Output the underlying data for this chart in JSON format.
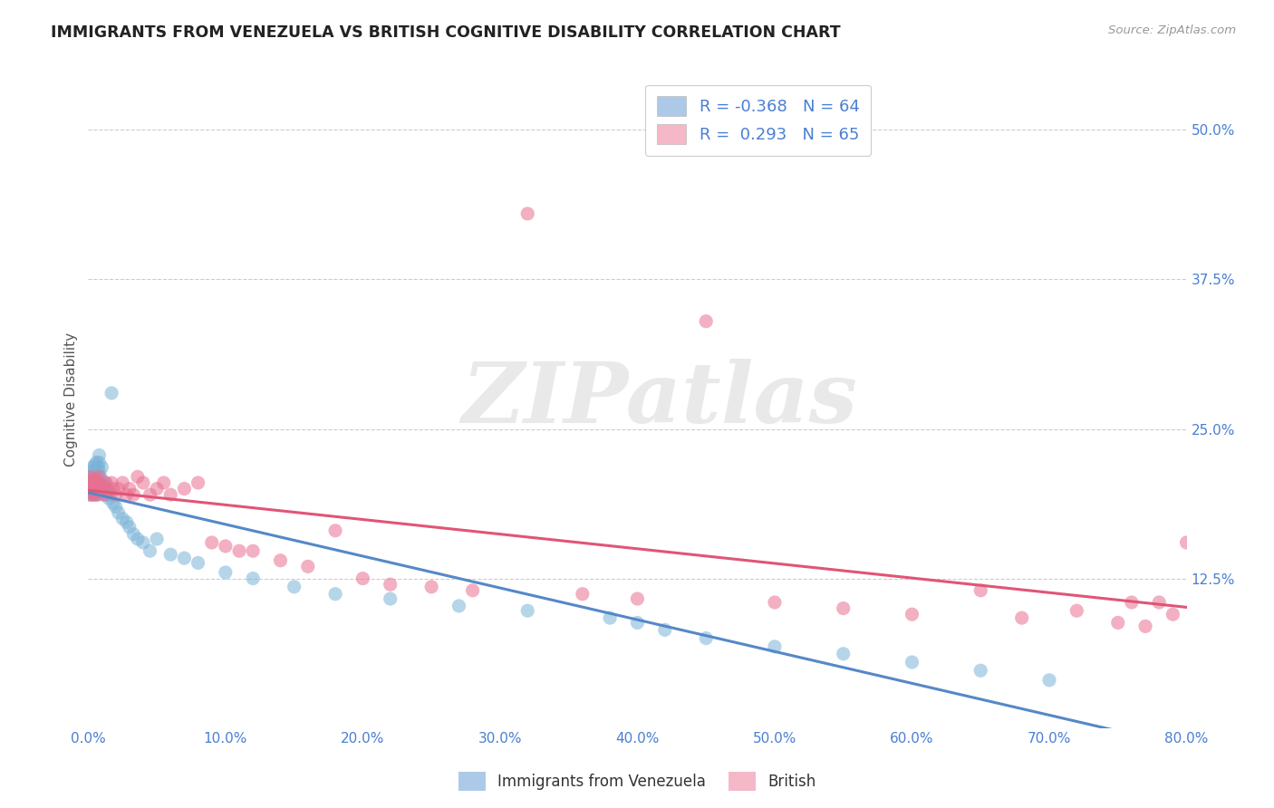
{
  "title": "IMMIGRANTS FROM VENEZUELA VS BRITISH COGNITIVE DISABILITY CORRELATION CHART",
  "source": "Source: ZipAtlas.com",
  "ylabel": "Cognitive Disability",
  "watermark": "ZIPatlas",
  "legend_R_N": [
    {
      "R": -0.368,
      "N": 64,
      "patch_color": "#adc9e8"
    },
    {
      "R": 0.293,
      "N": 65,
      "patch_color": "#f4b8c8"
    }
  ],
  "bottom_legend": [
    {
      "label": "Immigrants from Venezuela",
      "color": "#adc9e8"
    },
    {
      "label": "British",
      "color": "#f4b8c8"
    }
  ],
  "series": [
    {
      "name": "Immigrants from Venezuela",
      "dot_color": "#7ab3d8",
      "trend_color": "#5588c8",
      "trend_style": "-",
      "x": [
        0.001,
        0.001,
        0.002,
        0.002,
        0.002,
        0.003,
        0.003,
        0.003,
        0.004,
        0.004,
        0.004,
        0.005,
        0.005,
        0.005,
        0.006,
        0.006,
        0.006,
        0.007,
        0.007,
        0.007,
        0.008,
        0.008,
        0.008,
        0.009,
        0.009,
        0.01,
        0.01,
        0.011,
        0.012,
        0.013,
        0.014,
        0.015,
        0.016,
        0.017,
        0.018,
        0.02,
        0.022,
        0.025,
        0.028,
        0.03,
        0.033,
        0.036,
        0.04,
        0.045,
        0.05,
        0.06,
        0.07,
        0.08,
        0.1,
        0.12,
        0.15,
        0.18,
        0.22,
        0.27,
        0.32,
        0.38,
        0.4,
        0.42,
        0.45,
        0.5,
        0.55,
        0.6,
        0.65,
        0.7
      ],
      "y": [
        0.2,
        0.21,
        0.195,
        0.205,
        0.215,
        0.2,
        0.208,
        0.218,
        0.195,
        0.205,
        0.215,
        0.2,
        0.21,
        0.22,
        0.195,
        0.208,
        0.222,
        0.2,
        0.212,
        0.218,
        0.215,
        0.222,
        0.228,
        0.2,
        0.21,
        0.2,
        0.218,
        0.195,
        0.205,
        0.202,
        0.195,
        0.192,
        0.195,
        0.28,
        0.188,
        0.185,
        0.18,
        0.175,
        0.172,
        0.168,
        0.162,
        0.158,
        0.155,
        0.148,
        0.158,
        0.145,
        0.142,
        0.138,
        0.13,
        0.125,
        0.118,
        0.112,
        0.108,
        0.102,
        0.098,
        0.092,
        0.088,
        0.082,
        0.075,
        0.068,
        0.062,
        0.055,
        0.048,
        0.04
      ]
    },
    {
      "name": "British",
      "dot_color": "#e87090",
      "trend_color": "#e05575",
      "trend_style": "-",
      "x": [
        0.001,
        0.001,
        0.002,
        0.002,
        0.003,
        0.003,
        0.004,
        0.004,
        0.005,
        0.005,
        0.006,
        0.006,
        0.007,
        0.007,
        0.008,
        0.008,
        0.009,
        0.01,
        0.011,
        0.012,
        0.013,
        0.015,
        0.017,
        0.018,
        0.02,
        0.022,
        0.025,
        0.028,
        0.03,
        0.033,
        0.036,
        0.04,
        0.045,
        0.05,
        0.055,
        0.06,
        0.07,
        0.08,
        0.09,
        0.1,
        0.11,
        0.12,
        0.14,
        0.16,
        0.18,
        0.2,
        0.22,
        0.25,
        0.28,
        0.32,
        0.36,
        0.4,
        0.45,
        0.5,
        0.55,
        0.6,
        0.65,
        0.68,
        0.72,
        0.75,
        0.76,
        0.77,
        0.78,
        0.79,
        0.8
      ],
      "y": [
        0.195,
        0.205,
        0.2,
        0.21,
        0.195,
        0.205,
        0.198,
        0.208,
        0.195,
        0.205,
        0.198,
        0.208,
        0.195,
        0.205,
        0.2,
        0.21,
        0.198,
        0.2,
        0.202,
        0.195,
        0.205,
        0.198,
        0.205,
        0.2,
        0.195,
        0.2,
        0.205,
        0.195,
        0.2,
        0.195,
        0.21,
        0.205,
        0.195,
        0.2,
        0.205,
        0.195,
        0.2,
        0.205,
        0.155,
        0.152,
        0.148,
        0.148,
        0.14,
        0.135,
        0.165,
        0.125,
        0.12,
        0.118,
        0.115,
        0.43,
        0.112,
        0.108,
        0.34,
        0.105,
        0.1,
        0.095,
        0.115,
        0.092,
        0.098,
        0.088,
        0.105,
        0.085,
        0.105,
        0.095,
        0.155
      ]
    }
  ],
  "xmin": 0.0,
  "xmax": 0.8,
  "ymin": 0.0,
  "ymax": 0.55,
  "yticks": [
    0.125,
    0.25,
    0.375,
    0.5
  ],
  "ytick_labels": [
    "12.5%",
    "25.0%",
    "37.5%",
    "50.0%"
  ],
  "xtick_vals": [
    0.0,
    0.1,
    0.2,
    0.3,
    0.4,
    0.5,
    0.6,
    0.7,
    0.8
  ],
  "xtick_labels": [
    "0.0%",
    "10.0%",
    "20.0%",
    "30.0%",
    "40.0%",
    "50.0%",
    "60.0%",
    "70.0%",
    "80.0%"
  ],
  "bg_color": "#ffffff",
  "grid_color": "#cccccc",
  "tick_color": "#4a7fd4",
  "title_color": "#222222",
  "source_color": "#999999",
  "axis_label_color": "#555555"
}
